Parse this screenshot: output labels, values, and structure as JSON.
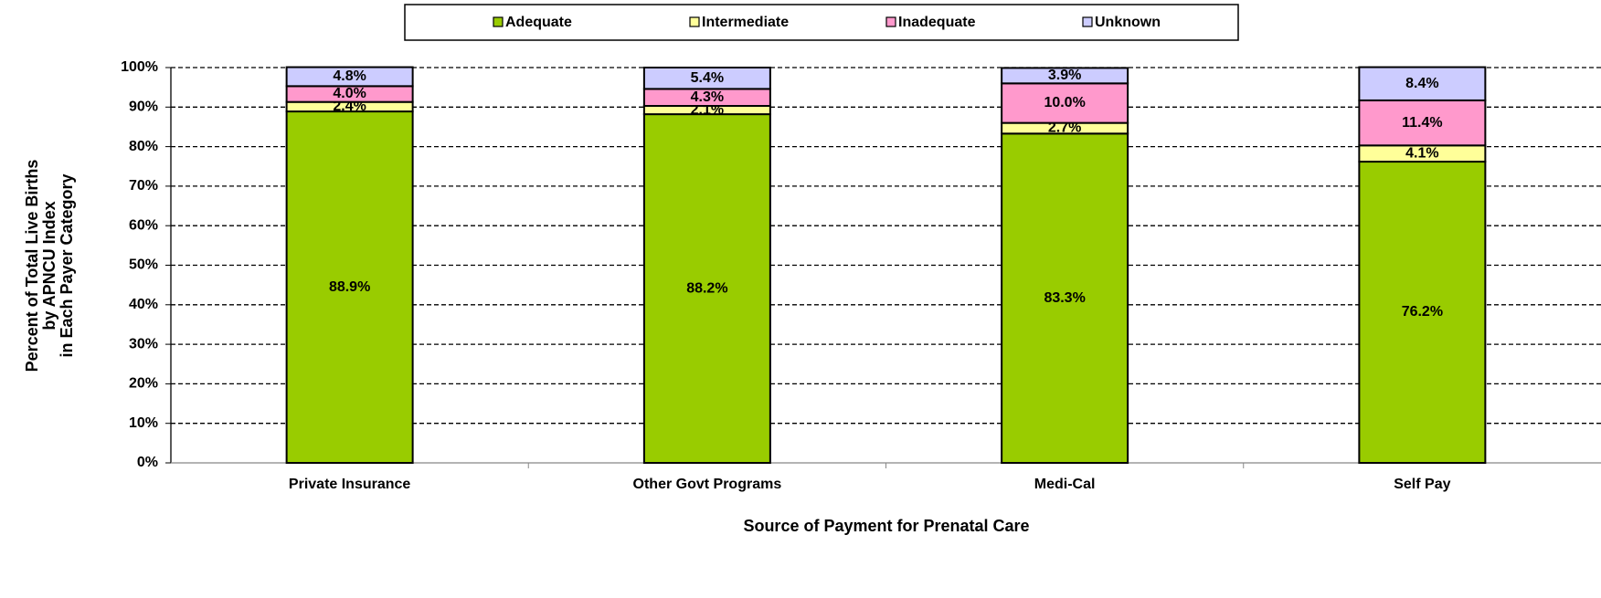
{
  "chart_data": {
    "type": "stacked_bar",
    "x_label": "Source of Payment for Prenatal Care",
    "y_label": [
      "Percent of Total Live Births",
      "by APNCU Index",
      "in Each Payer Category"
    ],
    "categories": [
      "Private Insurance",
      "Other Govt Programs",
      "Medi-Cal",
      "Self Pay"
    ],
    "series": [
      {
        "name": "Adequate",
        "color": "#99cc00",
        "values": [
          88.9,
          88.2,
          83.3,
          76.2
        ],
        "value_labels": [
          "88.9%",
          "88.2%",
          "83.3%",
          "76.2%"
        ]
      },
      {
        "name": "Intermediate",
        "color": "#ffff99",
        "values": [
          2.4,
          2.1,
          2.7,
          4.1
        ],
        "value_labels": [
          "2.4%",
          "2.1%",
          "2.7%",
          "4.1%"
        ]
      },
      {
        "name": "Inadequate",
        "color": "#ff99cc",
        "values": [
          4.0,
          4.3,
          10.0,
          11.4
        ],
        "value_labels": [
          "4.0%",
          "4.3%",
          "10.0%",
          "11.4%"
        ]
      },
      {
        "name": "Unknown",
        "color": "#ccccff",
        "values": [
          4.8,
          5.4,
          3.9,
          8.4
        ],
        "value_labels": [
          "4.8%",
          "5.4%",
          "3.9%",
          "8.4%"
        ]
      }
    ],
    "ylim": [
      0,
      100
    ],
    "yticks": [
      {
        "value": 0,
        "label": "0%"
      },
      {
        "value": 10,
        "label": "10%"
      },
      {
        "value": 20,
        "label": "20%"
      },
      {
        "value": 30,
        "label": "30%"
      },
      {
        "value": 40,
        "label": "40%"
      },
      {
        "value": 50,
        "label": "50%"
      },
      {
        "value": 60,
        "label": "60%"
      },
      {
        "value": 70,
        "label": "70%"
      },
      {
        "value": 80,
        "label": "80%"
      },
      {
        "value": 90,
        "label": "90%"
      },
      {
        "value": 100,
        "label": "100%"
      }
    ],
    "grid": true,
    "legend": "top"
  }
}
